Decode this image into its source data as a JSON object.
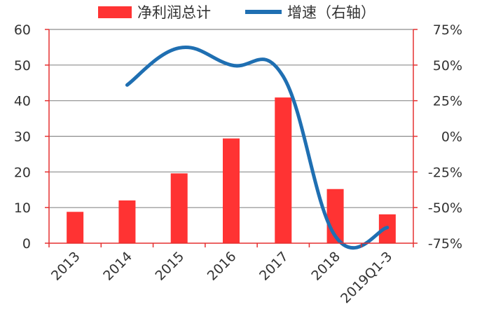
{
  "chart_data": {
    "type": "bar",
    "categories": [
      "2013",
      "2014",
      "2015",
      "2016",
      "2017",
      "2018",
      "2019Q1-3"
    ],
    "series": [
      {
        "name": "净利润总计",
        "type": "bar",
        "axis": "left",
        "color": "#FF3333",
        "values": [
          8.8,
          12.0,
          19.6,
          29.4,
          40.9,
          15.2,
          8.1
        ]
      },
      {
        "name": "增速（右轴）",
        "type": "line",
        "axis": "right",
        "color": "#1F6FB2",
        "values": [
          null,
          36,
          62,
          50,
          42,
          -70,
          -64
        ]
      }
    ],
    "y_left": {
      "min": 0,
      "max": 60,
      "ticks": [
        "0",
        "10",
        "20",
        "30",
        "40",
        "50",
        "60"
      ]
    },
    "y_right": {
      "min": -75,
      "max": 75,
      "ticks": [
        "-75%",
        "-50%",
        "-25%",
        "0%",
        "25%",
        "50%",
        "75%"
      ]
    },
    "grid": true,
    "legend": "top-center",
    "axis_color": "#E53030"
  }
}
